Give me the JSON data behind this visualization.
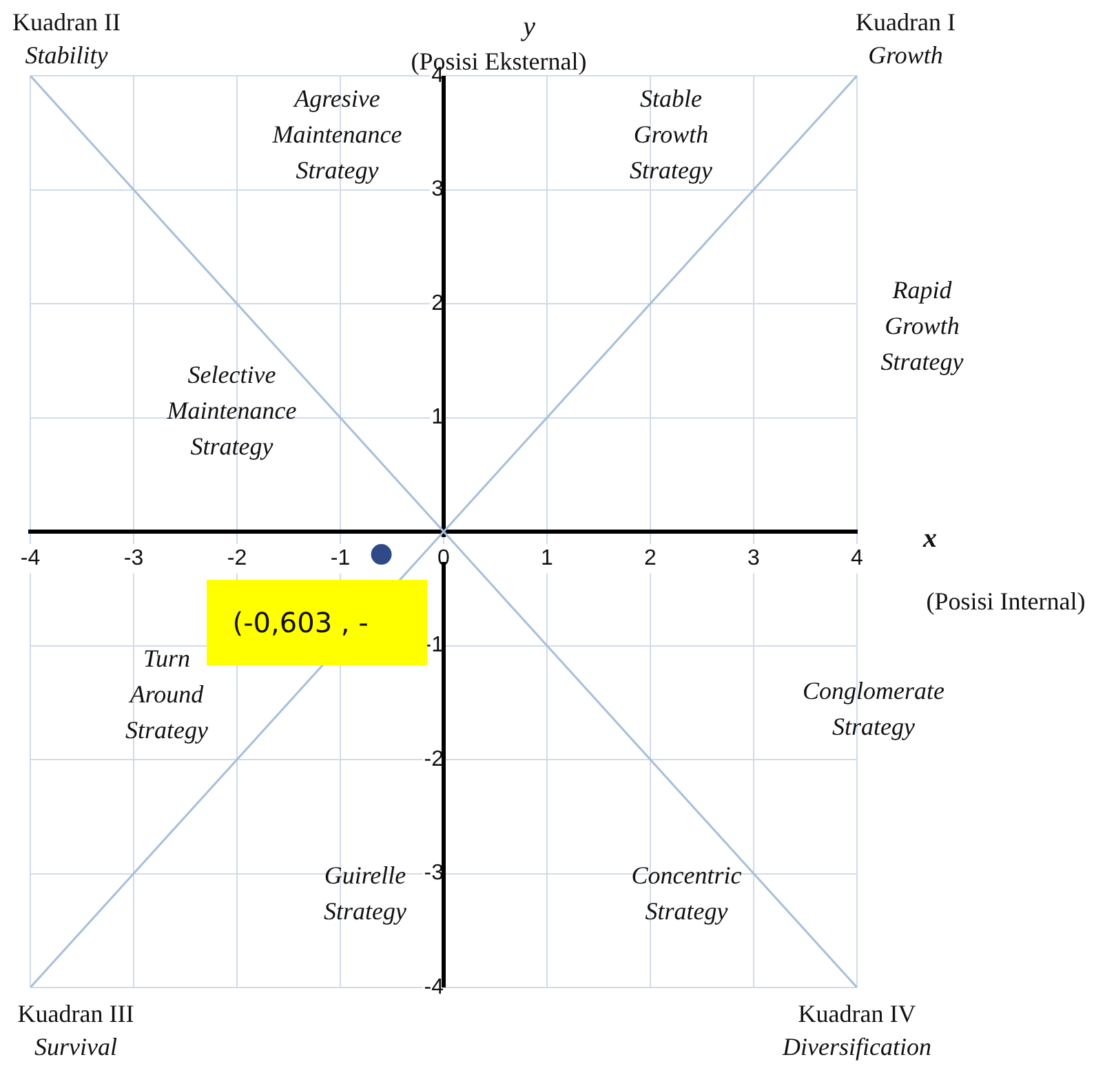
{
  "chart_data": {
    "type": "scatter",
    "xlabel": "x\n(Posisi Internal)",
    "ylabel": "y\n(Posisi Eksternal)",
    "xlim": [
      -4,
      4
    ],
    "ylim": [
      -4,
      4
    ],
    "xticks": [
      -4,
      -3,
      -2,
      -1,
      0,
      1,
      2,
      3,
      4
    ],
    "yticks": [
      -4,
      -3,
      -2,
      -1,
      1,
      2,
      3,
      4
    ],
    "grid": true,
    "legend": false,
    "series": [
      {
        "type": "line",
        "x": [
          -4,
          4
        ],
        "values": [
          -4,
          4
        ],
        "color": "#a7bfdc"
      },
      {
        "type": "line",
        "x": [
          -4,
          4
        ],
        "values": [
          4,
          -4
        ],
        "color": "#a7bfdc"
      },
      {
        "type": "scatter",
        "x": [
          -0.603
        ],
        "values": [
          -0.2
        ],
        "color": "#2e4a87",
        "marker": "circle"
      }
    ],
    "annotations": [
      "Kuadran II\nStability",
      "Kuadran I\nGrowth",
      "Kuadran III\nSurvival",
      "Kuadran IV\nDiversification",
      "Agresive\nMaintenance\nStrategy",
      "Stable\nGrowth\nStrategy",
      "Rapid\nGrowth\nStrategy",
      "Selective\nMaintenance\nStrategy",
      "Turn\nAround\nStrategy",
      "Conglomerate\nStrategy",
      "Guirelle\nStrategy",
      "Concentric\nStrategy",
      {
        "text": "(-0,603 , -",
        "x": -0.603,
        "y": -0.2
      }
    ]
  }
}
